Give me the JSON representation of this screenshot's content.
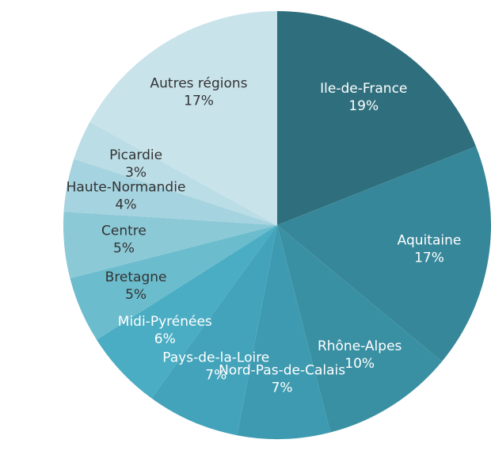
{
  "chart_data": {
    "type": "pie",
    "categories": [
      "Ile-de-France",
      "Aquitaine",
      "Rhône-Alpes",
      "Nord-Pas-de-Calais",
      "Pays-de-la-Loire",
      "Midi-Pyrénées",
      "Bretagne",
      "Centre",
      "Haute-Normandie",
      "Picardie",
      "Autres régions"
    ],
    "values": [
      19,
      17,
      10,
      7,
      7,
      6,
      5,
      5,
      4,
      3,
      17
    ],
    "value_labels": [
      "19%",
      "17%",
      "10%",
      "7%",
      "7%",
      "6%",
      "5%",
      "5%",
      "4%",
      "3%",
      "17%"
    ],
    "colors": [
      "#2f6f7d",
      "#37879a",
      "#3a90a3",
      "#3e9ab0",
      "#43a3ba",
      "#4aadc3",
      "#6bbccd",
      "#8bc9d7",
      "#a5d3df",
      "#bbdde6",
      "#c9e3eb"
    ]
  }
}
